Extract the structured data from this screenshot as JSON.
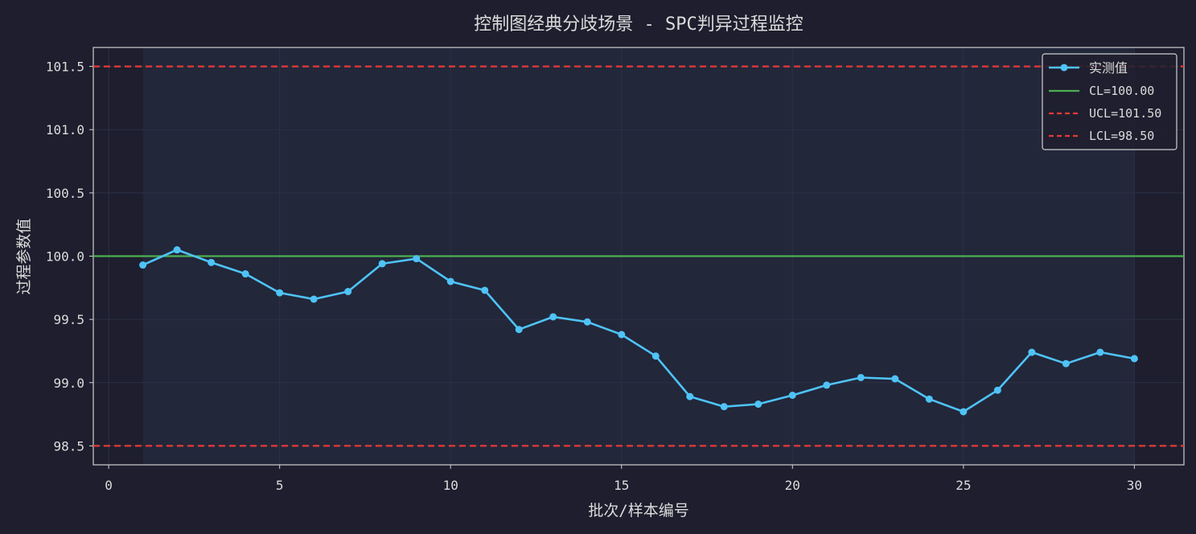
{
  "colors": {
    "background": "#1e1e2e",
    "plot_area": "#1e1e2e",
    "band": "#22273a",
    "text": "#dcdcdc",
    "series": "#4fc3f7",
    "cl": "#4caf50",
    "limit": "#e53935",
    "grid": "#2c3146",
    "legend_bg": "#1e1e2e",
    "legend_border": "#cfcfcf"
  },
  "chart_data": {
    "type": "line",
    "title": "控制图经典分歧场景 - SPC判异过程监控",
    "xlabel": "批次/样本编号",
    "ylabel": "过程参数值",
    "xlim": [
      -0.45,
      31.45
    ],
    "ylim": [
      98.35,
      101.65
    ],
    "x_ticks": [
      0,
      5,
      10,
      15,
      20,
      25,
      30
    ],
    "x_tick_labels": [
      "0",
      "5",
      "10",
      "15",
      "20",
      "25",
      "30"
    ],
    "y_ticks": [
      98.5,
      99.0,
      99.5,
      100.0,
      100.5,
      101.0,
      101.5
    ],
    "y_tick_labels": [
      "98.5",
      "99.0",
      "99.5",
      "100.0",
      "100.5",
      "101.0",
      "101.5"
    ],
    "grid": true,
    "legend_position": "top-right",
    "x": [
      1,
      2,
      3,
      4,
      5,
      6,
      7,
      8,
      9,
      10,
      11,
      12,
      13,
      14,
      15,
      16,
      17,
      18,
      19,
      20,
      21,
      22,
      23,
      24,
      25,
      26,
      27,
      28,
      29,
      30
    ],
    "series": [
      {
        "name": "实测值",
        "values": [
          99.93,
          100.05,
          99.95,
          99.86,
          99.71,
          99.66,
          99.72,
          99.94,
          99.98,
          99.8,
          99.73,
          99.42,
          99.52,
          99.48,
          99.38,
          99.21,
          98.89,
          98.81,
          98.83,
          98.9,
          98.98,
          99.04,
          99.03,
          98.87,
          98.77,
          98.94,
          99.24,
          99.15,
          99.24,
          99.19
        ]
      }
    ],
    "reference_lines": [
      {
        "name": "CL=100.00",
        "value": 100.0,
        "style": "solid"
      },
      {
        "name": "UCL=101.50",
        "value": 101.5,
        "style": "dashed"
      },
      {
        "name": "LCL=98.50",
        "value": 98.5,
        "style": "dashed"
      }
    ],
    "shaded_x_range": [
      1,
      30
    ]
  }
}
